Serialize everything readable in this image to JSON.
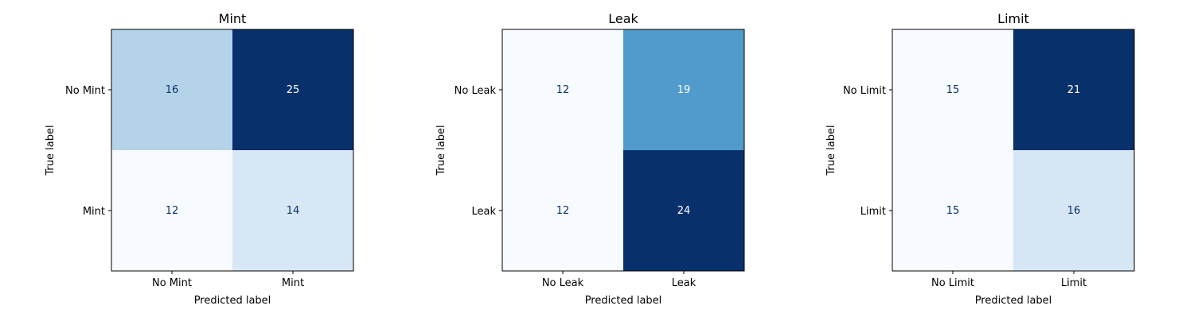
{
  "chart_data": [
    {
      "type": "heatmap",
      "title": "Mint",
      "xlabel": "Predicted label",
      "ylabel": "True label",
      "x_tick_labels": [
        "No Mint",
        "Mint"
      ],
      "y_tick_labels": [
        "No Mint",
        "Mint"
      ],
      "matrix": [
        [
          16,
          25
        ],
        [
          12,
          14
        ]
      ],
      "colormap": "Blues"
    },
    {
      "type": "heatmap",
      "title": "Leak",
      "xlabel": "Predicted label",
      "ylabel": "True label",
      "x_tick_labels": [
        "No Leak",
        "Leak"
      ],
      "y_tick_labels": [
        "No Leak",
        "Leak"
      ],
      "matrix": [
        [
          12,
          19
        ],
        [
          12,
          24
        ]
      ],
      "colormap": "Blues"
    },
    {
      "type": "heatmap",
      "title": "Limit",
      "xlabel": "Predicted label",
      "ylabel": "True label",
      "x_tick_labels": [
        "No Limit",
        "Limit"
      ],
      "y_tick_labels": [
        "No Limit",
        "Limit"
      ],
      "matrix": [
        [
          15,
          21
        ],
        [
          15,
          16
        ]
      ],
      "colormap": "Blues"
    }
  ],
  "colors": {
    "light_text": "#ffffff",
    "dark_text": "#08306b",
    "axis": "#000000",
    "cmap_low": "#f7fbff",
    "cmap_high": "#08306b"
  }
}
